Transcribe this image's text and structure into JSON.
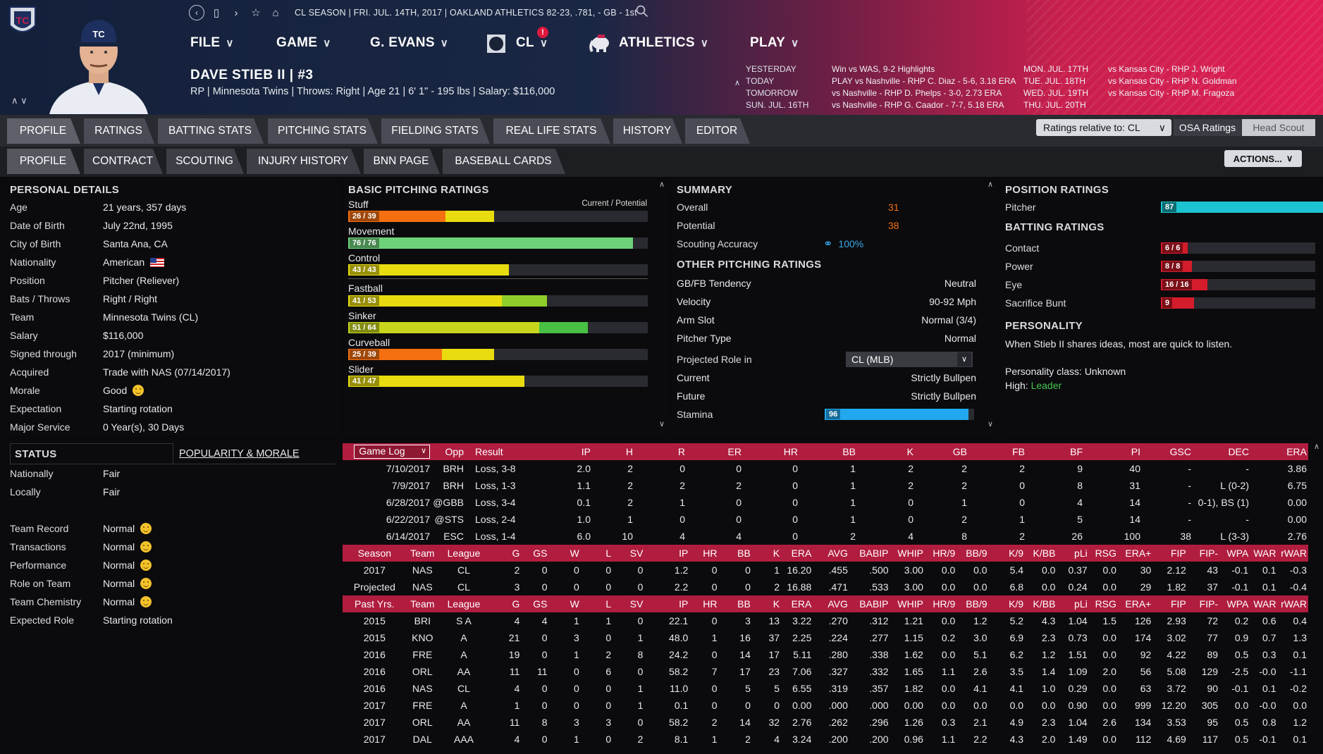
{
  "colors": {
    "accent": "#b01d3f",
    "orange": "#f36f10",
    "yellow": "#e8dc10",
    "lightgreen": "#6fd27b",
    "green": "#47c043",
    "cyan": "#1cc4d1",
    "blue": "#22a8ee",
    "red": "#d51c2c"
  },
  "topbar": {
    "season_line": "CL SEASON | FRI. JUL. 14TH, 2017 | OAKLAND ATHLETICS   82-23, .781, - GB - 1st"
  },
  "menus": {
    "file": "FILE",
    "game": "GAME",
    "gevans": "G. EVANS",
    "cl": "CL",
    "cl_badge": "!",
    "athletics": "ATHLETICS",
    "play": "PLAY"
  },
  "player": {
    "name": "DAVE STIEB II | #3",
    "info": "RP | Minnesota Twins | Throws: Right | Age 21 | 6' 1\" - 195 lbs | Salary: $116,000"
  },
  "schedule": {
    "left": [
      {
        "label": "YESTERDAY",
        "text": "Win vs WAS, 9-2    Highlights"
      },
      {
        "label": "TODAY",
        "text": "PLAY vs Nashville - RHP C. Diaz - 5-6, 3.18 ERA"
      },
      {
        "label": "TOMORROW",
        "text": "vs Nashville - RHP D. Phelps - 3-0, 2.73 ERA"
      },
      {
        "label": "SUN. JUL. 16TH",
        "text": "vs Nashville - RHP G. Caador - 7-7, 5.18 ERA"
      }
    ],
    "right": [
      {
        "label": "MON. JUL. 17TH",
        "text": "vs Kansas City - RHP J. Wright"
      },
      {
        "label": "TUE. JUL. 18TH",
        "text": "vs Kansas City - RHP N. Goldman"
      },
      {
        "label": "WED. JUL. 19TH",
        "text": "vs Kansas City - RHP M. Fragoza"
      },
      {
        "label": "THU. JUL. 20TH",
        "text": ""
      }
    ]
  },
  "tabs": [
    "PROFILE",
    "RATINGS",
    "BATTING STATS",
    "PITCHING STATS",
    "FIELDING STATS",
    "REAL LIFE STATS",
    "HISTORY",
    "EDITOR"
  ],
  "subtabs": [
    "PROFILE",
    "CONTRACT",
    "SCOUTING",
    "INJURY HISTORY",
    "BNN PAGE",
    "BASEBALL CARDS"
  ],
  "controls": {
    "relative": "Ratings relative to: CL",
    "osa": "OSA Ratings",
    "head_scout": "Head Scout",
    "actions": "ACTIONS..."
  },
  "personal": {
    "title": "PERSONAL DETAILS",
    "rows": [
      [
        "Age",
        "21 years, 357 days"
      ],
      [
        "Date of Birth",
        "July 22nd, 1995"
      ],
      [
        "City of Birth",
        "Santa Ana, CA"
      ],
      [
        "Nationality",
        "American"
      ],
      [
        "Position",
        "Pitcher (Reliever)"
      ],
      [
        "Bats / Throws",
        "Right / Right"
      ],
      [
        "Team",
        "Minnesota Twins (CL)"
      ],
      [
        "Salary",
        "$116,000"
      ],
      [
        "Signed through",
        "2017 (minimum)"
      ],
      [
        "Acquired",
        "Trade with NAS (07/14/2017)"
      ],
      [
        "Morale",
        "Good"
      ],
      [
        "Expectation",
        "Starting rotation"
      ],
      [
        "Major Service",
        "0 Year(s), 30 Days"
      ]
    ]
  },
  "pitching": {
    "title": "BASIC PITCHING RATINGS",
    "legend": "Current / Potential",
    "ratings": [
      {
        "name": "Stuff",
        "text": "26 / 39",
        "cur": 26,
        "pot": 39,
        "c1": "#f36f10",
        "c2": "#e8dc10"
      },
      {
        "name": "Movement",
        "text": "76 / 76",
        "cur": 76,
        "pot": 76,
        "c1": "#6fd27b",
        "c2": "#6fd27b"
      },
      {
        "name": "Control",
        "text": "43 / 43",
        "cur": 43,
        "pot": 43,
        "c1": "#e8dc10",
        "c2": "#e8dc10"
      },
      {
        "name": "Fastball",
        "text": "41 / 53",
        "cur": 41,
        "pot": 53,
        "c1": "#e8dc10",
        "c2": "#8fce2a"
      },
      {
        "name": "Sinker",
        "text": "51 / 64",
        "cur": 51,
        "pot": 64,
        "c1": "#c7d61c",
        "c2": "#47c043"
      },
      {
        "name": "Curveball",
        "text": "25 / 39",
        "cur": 25,
        "pot": 39,
        "c1": "#f36f10",
        "c2": "#e8dc10"
      },
      {
        "name": "Slider",
        "text": "41 / 47",
        "cur": 41,
        "pot": 47,
        "c1": "#e8dc10",
        "c2": "#e8dc10"
      }
    ]
  },
  "summary": {
    "title": "SUMMARY",
    "overall_l": "Overall",
    "overall": "31",
    "potential_l": "Potential",
    "potential": "38",
    "scouting_l": "Scouting Accuracy",
    "scouting": "100%",
    "other_title": "OTHER PITCHING RATINGS",
    "rows": [
      [
        "GB/FB Tendency",
        "Neutral"
      ],
      [
        "Velocity",
        "90-92 Mph"
      ],
      [
        "Arm Slot",
        "Normal (3/4)"
      ],
      [
        "Pitcher Type",
        "Normal"
      ]
    ],
    "role_l": "Projected Role in",
    "role_dd": "CL (MLB)",
    "current_l": "Current",
    "current": "Strictly Bullpen",
    "future_l": "Future",
    "future": "Strictly Bullpen",
    "stamina_l": "Stamina",
    "stamina": "96"
  },
  "position": {
    "title": "POSITION RATINGS",
    "pitcher_l": "Pitcher",
    "pitcher": "87",
    "batting_title": "BATTING RATINGS",
    "batting": [
      {
        "name": "Contact",
        "text": "6 / 6",
        "v": 6
      },
      {
        "name": "Power",
        "text": "8 / 8",
        "v": 8
      },
      {
        "name": "Eye",
        "text": "16 / 16",
        "v": 16
      },
      {
        "name": "Sacrifice Bunt",
        "text": "9",
        "v": 9
      }
    ],
    "pers_title": "PERSONALITY",
    "pers_text": "When Stieb II shares ideas, most are quick to listen.",
    "pers_class": "Personality class: Unknown",
    "high_l": "High:",
    "high": "Leader"
  },
  "status": {
    "title": "STATUS",
    "tab2": "POPULARITY & MORALE",
    "rows1": [
      [
        "Nationally",
        "Fair"
      ],
      [
        "Locally",
        "Fair"
      ]
    ],
    "rows2": [
      [
        "Team Record",
        "Normal"
      ],
      [
        "Transactions",
        "Normal"
      ],
      [
        "Performance",
        "Normal"
      ],
      [
        "Role on Team",
        "Normal"
      ],
      [
        "Team Chemistry",
        "Normal"
      ]
    ],
    "expected_l": "Expected Role",
    "expected": "Starting rotation"
  },
  "gamelog": {
    "dropdown": "Game Log",
    "headers": [
      "Opp",
      "Result",
      "IP",
      "H",
      "R",
      "ER",
      "HR",
      "BB",
      "K",
      "GB",
      "FB",
      "BF",
      "PI",
      "GSC",
      "DEC",
      "ERA"
    ],
    "rows": [
      [
        "7/10/2017",
        "BRH",
        "Loss, 3-8",
        "2.0",
        "2",
        "0",
        "0",
        "0",
        "1",
        "2",
        "2",
        "2",
        "9",
        "40",
        "-",
        "-",
        "3.86"
      ],
      [
        "7/9/2017",
        "BRH",
        "Loss, 1-3",
        "1.1",
        "2",
        "2",
        "2",
        "0",
        "1",
        "2",
        "2",
        "0",
        "8",
        "31",
        "-",
        "L (0-2)",
        "6.75"
      ],
      [
        "6/28/2017",
        "@GBB",
        "Loss, 3-4",
        "0.1",
        "2",
        "1",
        "0",
        "0",
        "1",
        "0",
        "1",
        "0",
        "4",
        "14",
        "-",
        "0-1), BS (1)",
        "0.00"
      ],
      [
        "6/22/2017",
        "@STS",
        "Loss, 2-4",
        "1.0",
        "1",
        "0",
        "0",
        "0",
        "1",
        "0",
        "2",
        "1",
        "5",
        "14",
        "-",
        "-",
        "0.00"
      ],
      [
        "6/14/2017",
        "ESC",
        "Loss, 1-4",
        "6.0",
        "10",
        "4",
        "4",
        "0",
        "2",
        "4",
        "8",
        "2",
        "26",
        "100",
        "38",
        "L (3-3)",
        "2.76"
      ]
    ]
  },
  "season": {
    "headers": [
      "Season",
      "Team",
      "League",
      "G",
      "GS",
      "W",
      "L",
      "SV",
      "IP",
      "HR",
      "BB",
      "K",
      "ERA",
      "AVG",
      "BABIP",
      "WHIP",
      "HR/9",
      "BB/9",
      "K/9",
      "K/BB",
      "pLi",
      "RSG",
      "ERA+",
      "FIP",
      "FIP-",
      "WPA",
      "WAR",
      "rWAR"
    ],
    "rows": [
      [
        "2017",
        "NAS",
        "CL",
        "2",
        "0",
        "0",
        "0",
        "0",
        "1.2",
        "0",
        "0",
        "1",
        "16.20",
        ".455",
        ".500",
        "3.00",
        "0.0",
        "0.0",
        "5.4",
        "0.0",
        "0.37",
        "0.0",
        "30",
        "2.12",
        "43",
        "-0.1",
        "0.1",
        "-0.3"
      ],
      [
        "Projected",
        "NAS",
        "CL",
        "3",
        "0",
        "0",
        "0",
        "0",
        "2.2",
        "0",
        "0",
        "2",
        "16.88",
        ".471",
        ".533",
        "3.00",
        "0.0",
        "0.0",
        "6.8",
        "0.0",
        "0.24",
        "0.0",
        "29",
        "1.82",
        "37",
        "-0.1",
        "0.1",
        "-0.4"
      ]
    ]
  },
  "past": {
    "headers": [
      "Past Yrs.",
      "Team",
      "League",
      "G",
      "GS",
      "W",
      "L",
      "SV",
      "IP",
      "HR",
      "BB",
      "K",
      "ERA",
      "AVG",
      "BABIP",
      "WHIP",
      "HR/9",
      "BB/9",
      "K/9",
      "K/BB",
      "pLi",
      "RSG",
      "ERA+",
      "FIP",
      "FIP-",
      "WPA",
      "WAR",
      "rWAR"
    ],
    "rows": [
      [
        "2015",
        "BRI",
        "S A",
        "4",
        "4",
        "1",
        "1",
        "0",
        "22.1",
        "0",
        "3",
        "13",
        "3.22",
        ".270",
        ".312",
        "1.21",
        "0.0",
        "1.2",
        "5.2",
        "4.3",
        "1.04",
        "1.5",
        "126",
        "2.93",
        "72",
        "0.2",
        "0.6",
        "0.4"
      ],
      [
        "2015",
        "KNO",
        "A",
        "21",
        "0",
        "3",
        "0",
        "1",
        "48.0",
        "1",
        "16",
        "37",
        "2.25",
        ".224",
        ".277",
        "1.15",
        "0.2",
        "3.0",
        "6.9",
        "2.3",
        "0.73",
        "0.0",
        "174",
        "3.02",
        "77",
        "0.9",
        "0.7",
        "1.3"
      ],
      [
        "2016",
        "FRE",
        "A",
        "19",
        "0",
        "1",
        "2",
        "8",
        "24.2",
        "0",
        "14",
        "17",
        "5.11",
        ".280",
        ".338",
        "1.62",
        "0.0",
        "5.1",
        "6.2",
        "1.2",
        "1.51",
        "0.0",
        "92",
        "4.22",
        "89",
        "0.5",
        "0.3",
        "0.1"
      ],
      [
        "2016",
        "ORL",
        "AA",
        "11",
        "11",
        "0",
        "6",
        "0",
        "58.2",
        "7",
        "17",
        "23",
        "7.06",
        ".327",
        ".332",
        "1.65",
        "1.1",
        "2.6",
        "3.5",
        "1.4",
        "1.09",
        "2.0",
        "56",
        "5.08",
        "129",
        "-2.5",
        "-0.0",
        "-1.1"
      ],
      [
        "2016",
        "NAS",
        "CL",
        "4",
        "0",
        "0",
        "0",
        "1",
        "11.0",
        "0",
        "5",
        "5",
        "6.55",
        ".319",
        ".357",
        "1.82",
        "0.0",
        "4.1",
        "4.1",
        "1.0",
        "0.29",
        "0.0",
        "63",
        "3.72",
        "90",
        "-0.1",
        "0.1",
        "-0.2"
      ],
      [
        "2017",
        "FRE",
        "A",
        "1",
        "0",
        "0",
        "0",
        "1",
        "0.1",
        "0",
        "0",
        "0",
        "0.00",
        ".000",
        ".000",
        "0.00",
        "0.0",
        "0.0",
        "0.0",
        "0.0",
        "0.90",
        "0.0",
        "999",
        "12.20",
        "305",
        "0.0",
        "-0.0",
        "0.0"
      ],
      [
        "2017",
        "ORL",
        "AA",
        "11",
        "8",
        "3",
        "3",
        "0",
        "58.2",
        "2",
        "14",
        "32",
        "2.76",
        ".262",
        ".296",
        "1.26",
        "0.3",
        "2.1",
        "4.9",
        "2.3",
        "1.04",
        "2.6",
        "134",
        "3.53",
        "95",
        "0.5",
        "0.8",
        "1.2"
      ],
      [
        "2017",
        "DAL",
        "AAA",
        "4",
        "0",
        "1",
        "0",
        "2",
        "8.1",
        "1",
        "2",
        "4",
        "3.24",
        ".200",
        ".200",
        "0.96",
        "1.1",
        "2.2",
        "4.3",
        "2.0",
        "1.49",
        "0.0",
        "112",
        "4.69",
        "117",
        "0.5",
        "-0.1",
        "0.1"
      ]
    ]
  }
}
